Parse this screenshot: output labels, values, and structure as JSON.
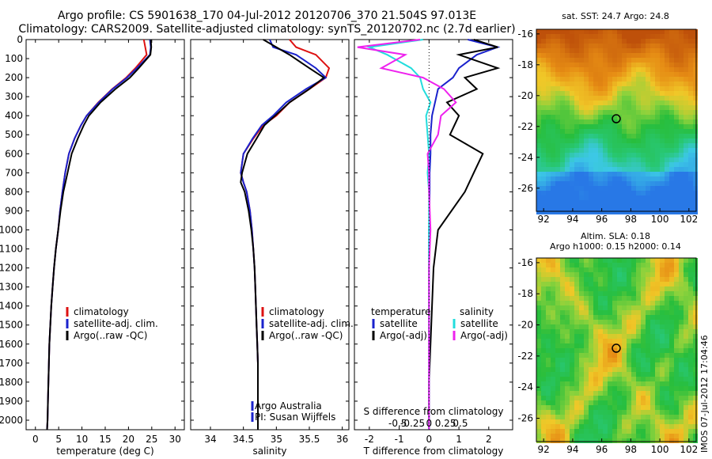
{
  "title_line1": "Argo profile: CS 5901638_170 04-Jul-2012 20120706_370 21.504S 97.013E",
  "title_line2": "Climatology: CARS2009. Satellite-adjusted climatology: synTS_20120702.nc (2.7d earlier)",
  "side_text": "IMOS 07-Jul-2012 17:04:46",
  "colors": {
    "climatology": "#dd1111",
    "satellite": "#1a22cc",
    "argo": "#000000",
    "satellite_s": "#22dddd",
    "argo_s": "#ee22ee"
  },
  "chart_data": [
    {
      "type": "line",
      "xlabel": "temperature (deg C)",
      "xlim": [
        -2,
        32
      ],
      "xticks": [
        0,
        5,
        10,
        15,
        20,
        25,
        30
      ],
      "ylim": [
        2050,
        0
      ],
      "yticks": [
        0,
        100,
        200,
        300,
        400,
        500,
        600,
        700,
        800,
        900,
        1000,
        1100,
        1200,
        1300,
        1400,
        1500,
        1600,
        1700,
        1800,
        1900,
        2000
      ],
      "legend": [
        "climatology",
        "satellite-adj. clim.",
        "Argo(..raw -QC)"
      ],
      "series": [
        {
          "name": "climatology",
          "color": "#dd1111",
          "x": [
            23.3,
            23.6,
            23.9,
            21.5,
            19.5,
            16.5,
            13.5,
            11.0,
            9.8,
            8.4,
            7.2,
            6.4,
            5.8,
            5.3,
            4.9,
            4.4,
            4.0,
            3.7,
            3.4,
            3.2,
            3.0,
            2.9,
            2.8,
            2.7,
            2.6,
            2.5
          ],
          "y": [
            0,
            40,
            80,
            150,
            200,
            260,
            330,
            400,
            450,
            520,
            600,
            700,
            800,
            900,
            1000,
            1100,
            1200,
            1300,
            1400,
            1500,
            1600,
            1700,
            1800,
            1900,
            2000,
            2050
          ]
        },
        {
          "name": "satellite-adj. clim.",
          "color": "#1a22cc",
          "x": [
            24.6,
            24.8,
            24.6,
            21.8,
            19.7,
            16.6,
            13.6,
            11.0,
            9.8,
            8.4,
            7.2,
            6.4,
            5.8,
            5.3,
            4.9,
            4.4,
            4.0,
            3.7,
            3.4,
            3.2,
            3.0,
            2.9,
            2.8,
            2.7,
            2.6,
            2.5
          ],
          "y": [
            0,
            40,
            80,
            150,
            200,
            260,
            330,
            400,
            450,
            520,
            600,
            700,
            800,
            900,
            1000,
            1100,
            1200,
            1300,
            1400,
            1500,
            1600,
            1700,
            1800,
            1900,
            2000,
            2050
          ]
        },
        {
          "name": "Argo(..raw -QC)",
          "color": "#000000",
          "x": [
            24.8,
            24.9,
            24.7,
            22.2,
            20.3,
            17.2,
            14.0,
            11.5,
            10.4,
            9.1,
            7.8,
            6.9,
            6.0,
            5.4,
            4.9,
            4.4,
            4.0,
            3.7,
            3.4,
            3.2,
            3.0,
            2.9,
            2.8,
            2.7,
            2.6,
            2.5
          ],
          "y": [
            0,
            40,
            80,
            150,
            200,
            260,
            330,
            400,
            450,
            520,
            600,
            700,
            800,
            900,
            1000,
            1100,
            1200,
            1300,
            1400,
            1500,
            1600,
            1700,
            1800,
            1900,
            2000,
            2050
          ]
        }
      ]
    },
    {
      "type": "line",
      "xlabel": "salinity",
      "xlim": [
        33.7,
        36.1
      ],
      "xticks": [
        34,
        34.5,
        35,
        35.5,
        36
      ],
      "ylim": [
        2050,
        0
      ],
      "legend": [
        "climatology",
        "satellite-adj. clim.",
        "Argo(..raw -QC)"
      ],
      "annotation": [
        "Argo Australia",
        "PI: Susan Wijffels"
      ],
      "series": [
        {
          "name": "climatology",
          "color": "#dd1111",
          "x": [
            35.2,
            35.3,
            35.6,
            35.8,
            35.75,
            35.5,
            35.2,
            35.0,
            34.8,
            34.65,
            34.5,
            34.46,
            34.5,
            34.55,
            34.6,
            34.63,
            34.65,
            34.67,
            34.68,
            34.69,
            34.7,
            34.71,
            34.72,
            34.72,
            34.72,
            34.72
          ],
          "y": [
            0,
            40,
            80,
            150,
            200,
            260,
            330,
            400,
            450,
            520,
            600,
            700,
            750,
            800,
            900,
            1000,
            1100,
            1200,
            1300,
            1400,
            1500,
            1600,
            1700,
            1800,
            1900,
            2050
          ]
        },
        {
          "name": "satellite-adj. clim.",
          "color": "#1a22cc",
          "x": [
            34.9,
            34.95,
            35.3,
            35.6,
            35.75,
            35.45,
            35.15,
            34.95,
            34.78,
            34.64,
            34.5,
            34.46,
            34.5,
            34.55,
            34.6,
            34.63,
            34.65,
            34.67,
            34.68,
            34.69,
            34.7,
            34.71,
            34.72,
            34.72,
            34.72,
            34.72
          ],
          "y": [
            0,
            40,
            80,
            150,
            200,
            260,
            330,
            400,
            450,
            520,
            600,
            700,
            750,
            800,
            900,
            1000,
            1100,
            1200,
            1300,
            1400,
            1500,
            1600,
            1700,
            1800,
            1900,
            2050
          ]
        },
        {
          "name": "Argo(..raw -QC)",
          "color": "#000000",
          "x": [
            34.8,
            35.0,
            35.2,
            35.5,
            35.72,
            35.5,
            35.2,
            34.98,
            34.82,
            34.7,
            34.56,
            34.48,
            34.46,
            34.52,
            34.58,
            34.62,
            34.65,
            34.67,
            34.68,
            34.69,
            34.7,
            34.71,
            34.72,
            34.72,
            34.72,
            34.72
          ],
          "y": [
            0,
            40,
            80,
            150,
            200,
            260,
            330,
            400,
            450,
            520,
            600,
            700,
            750,
            800,
            900,
            1000,
            1100,
            1200,
            1300,
            1400,
            1500,
            1600,
            1700,
            1800,
            1900,
            2050
          ]
        }
      ]
    },
    {
      "type": "line",
      "xlabel": "T difference from climatology",
      "xlabel_top": "S difference from climatology",
      "xlim": [
        -2.5,
        2.8
      ],
      "xticks": [
        -2,
        -1,
        0,
        1,
        2
      ],
      "xticks_s": [
        "-0.5",
        "-0.25",
        "0",
        "0.25",
        "0.5"
      ],
      "legend_headers": [
        "temperature",
        "salinity"
      ],
      "legend": [
        "satellite",
        "Argo(-adj)",
        "satellite",
        "Argo(-adj)"
      ],
      "series": [
        {
          "name": "temperature satellite",
          "color": "#1a22cc",
          "x": [
            1.3,
            2.3,
            1.6,
            1.0,
            0.8,
            0.3,
            0.2,
            0.1,
            0.05,
            0.05,
            0.02,
            0.02,
            0.0,
            0.0,
            0.0,
            0.0,
            0.0,
            0.0
          ],
          "y": [
            0,
            40,
            80,
            150,
            200,
            260,
            330,
            400,
            500,
            600,
            700,
            800,
            1000,
            1200,
            1400,
            1600,
            1800,
            2050
          ]
        },
        {
          "name": "temperature Argo(-adj)",
          "color": "#000000",
          "x": [
            1.5,
            2.3,
            1.0,
            2.3,
            1.2,
            1.6,
            0.6,
            1.0,
            0.7,
            1.8,
            1.5,
            1.2,
            0.3,
            0.15,
            0.1,
            0.05,
            0.0,
            0.0
          ],
          "y": [
            0,
            40,
            80,
            150,
            200,
            260,
            330,
            400,
            500,
            600,
            700,
            800,
            1000,
            1200,
            1400,
            1600,
            1800,
            2050
          ]
        },
        {
          "name": "salinity satellite",
          "color": "#22dddd",
          "x": [
            -0.2,
            -2.0,
            -1.4,
            -0.6,
            -0.3,
            -0.2,
            0.05,
            -0.1,
            -0.05,
            0.0,
            -0.05,
            0.0,
            0.0,
            0.0,
            0.0,
            0.0,
            0.0,
            0.0
          ],
          "y": [
            0,
            40,
            80,
            150,
            200,
            260,
            330,
            400,
            500,
            600,
            700,
            800,
            1000,
            1200,
            1400,
            1600,
            1800,
            2050
          ]
        },
        {
          "name": "salinity Argo(-adj)",
          "color": "#ee22ee",
          "x": [
            -0.3,
            -2.4,
            -0.8,
            -1.6,
            -0.2,
            0.5,
            0.9,
            0.4,
            0.3,
            -0.05,
            0.0,
            0.0,
            0.05,
            0.0,
            0.0,
            0.0,
            0.0,
            0.0
          ],
          "y": [
            0,
            40,
            80,
            150,
            200,
            260,
            330,
            400,
            500,
            600,
            700,
            800,
            1000,
            1200,
            1400,
            1600,
            1800,
            2050
          ]
        }
      ]
    },
    {
      "type": "heatmap",
      "title": "sat. SST: 24.7  Argo: 24.8",
      "xlim": [
        91.5,
        102.5
      ],
      "ylim": [
        -27.5,
        -15.7
      ],
      "xticks": [
        92,
        94,
        96,
        98,
        100,
        102
      ],
      "yticks": [
        -16,
        -18,
        -20,
        -22,
        -24,
        -26
      ],
      "marker": {
        "lon": 97.0,
        "lat": -21.5
      }
    },
    {
      "type": "heatmap",
      "title": "Altim. SLA: 0.18",
      "subtitle": "Argo h1000: 0.15 h2000: 0.14",
      "xlim": [
        91.5,
        102.5
      ],
      "ylim": [
        -27.5,
        -15.7
      ],
      "xticks": [
        92,
        94,
        96,
        98,
        100,
        102
      ],
      "yticks": [
        -16,
        -18,
        -20,
        -22,
        -24,
        -26
      ],
      "marker": {
        "lon": 97.0,
        "lat": -21.5
      }
    }
  ]
}
